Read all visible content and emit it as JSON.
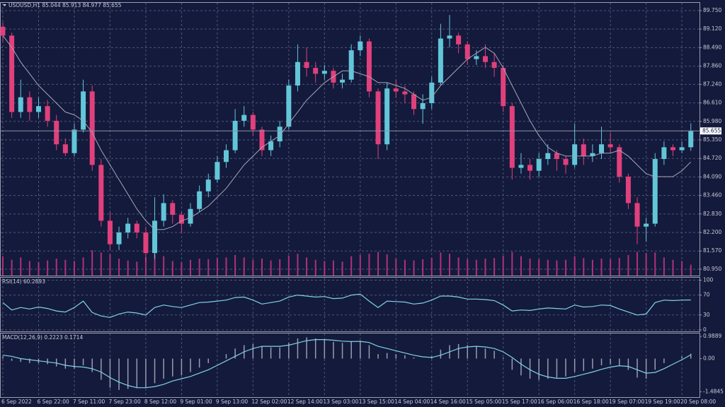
{
  "chart_data": [
    {
      "type": "candlestick",
      "title": "USOUSD,H1 85.044 85.913 84.977 85.655",
      "up_color": "#62c6d8",
      "down_color": "#e0407c",
      "grid": true,
      "categories": [
        "6 Sep 2022",
        null,
        null,
        null,
        "6 Sep 22:00",
        null,
        null,
        null,
        "7 Sep 11:00",
        null,
        null,
        null,
        "7 Sep 23:00",
        null,
        null,
        null,
        "8 Sep 12:00",
        null,
        null,
        null,
        "9 Sep 01:00",
        null,
        null,
        null,
        "9 Sep 13:00",
        null,
        null,
        null,
        "12 Sep 02:00",
        null,
        null,
        null,
        "12 Sep 14:00",
        null,
        null,
        null,
        "13 Sep 03:00",
        null,
        null,
        null,
        "13 Sep 15:00",
        null,
        null,
        null,
        "14 Sep 04:00",
        null,
        null,
        null,
        "14 Sep 16:00",
        null,
        null,
        null,
        "15 Sep 05:00",
        null,
        null,
        null,
        "15 Sep 17:00",
        null,
        null,
        null,
        "16 Sep 06:00",
        null,
        null,
        null,
        "16 Sep 18:00",
        null,
        null,
        null,
        "19 Sep 07:00",
        null,
        null,
        null,
        "19 Sep 19:00",
        null,
        null,
        null,
        "20 Sep 08:00",
        null
      ],
      "open": [
        89.2,
        88.9,
        86.3,
        86.8,
        86.3,
        86.5,
        86.0,
        85.2,
        84.9,
        85.7,
        87.0,
        84.5,
        82.6,
        81.8,
        82.2,
        82.5,
        82.2,
        81.5,
        82.6,
        83.2,
        82.8,
        82.5,
        83.0,
        83.6,
        84.0,
        84.6,
        85.0,
        86.0,
        86.2,
        85.7,
        85.0,
        85.3,
        85.8,
        87.2,
        88.0,
        87.8,
        87.6,
        87.7,
        87.3,
        87.4,
        88.4,
        88.7,
        87.0,
        85.2,
        87.1,
        87.0,
        86.9,
        86.4,
        86.6,
        87.3,
        88.8,
        88.9,
        88.6,
        88.1,
        88.2,
        88.0,
        87.8,
        86.5,
        84.4,
        84.5,
        84.3,
        84.7,
        84.9,
        84.7,
        84.5,
        85.2,
        84.8,
        84.9,
        85.2,
        85.1,
        84.1,
        83.2,
        82.4,
        82.5,
        84.7,
        85.1,
        85.0,
        85.1
      ],
      "high": [
        89.35,
        89.0,
        87.4,
        87.0,
        86.8,
        86.7,
        86.2,
        85.4,
        85.9,
        87.4,
        87.2,
        84.7,
        82.9,
        82.4,
        82.7,
        82.6,
        82.4,
        83.4,
        83.5,
        83.3,
        82.9,
        83.2,
        83.8,
        84.2,
        84.8,
        85.2,
        86.4,
        86.5,
        86.3,
        85.8,
        85.5,
        86.0,
        87.4,
        88.6,
        88.5,
        88.0,
        87.9,
        87.8,
        87.6,
        88.6,
        88.9,
        88.8,
        87.1,
        87.3,
        87.4,
        87.2,
        87.0,
        86.9,
        87.5,
        89.3,
        89.6,
        89.0,
        88.7,
        88.4,
        88.6,
        88.3,
        87.9,
        86.6,
        84.9,
        84.7,
        84.9,
        85.2,
        85.0,
        84.8,
        85.9,
        85.4,
        85.2,
        85.8,
        85.6,
        85.2,
        84.2,
        83.4,
        82.7,
        84.9,
        85.3,
        85.2,
        85.3,
        85.913
      ],
      "low": [
        88.7,
        86.1,
        86.1,
        86.0,
        86.1,
        85.8,
        85.0,
        84.8,
        84.8,
        85.6,
        84.3,
        82.4,
        81.6,
        81.6,
        82.0,
        82.0,
        81.2,
        81.3,
        82.4,
        82.5,
        82.2,
        82.4,
        82.9,
        83.4,
        83.9,
        84.4,
        84.9,
        85.8,
        85.5,
        84.8,
        84.8,
        85.1,
        85.7,
        87.0,
        87.5,
        87.3,
        87.4,
        87.1,
        87.1,
        87.3,
        88.2,
        86.8,
        84.7,
        85.0,
        86.8,
        86.6,
        86.2,
        85.9,
        86.4,
        87.2,
        88.5,
        88.3,
        87.9,
        87.9,
        87.8,
        87.5,
        86.3,
        84.0,
        84.2,
        84.0,
        84.1,
        84.5,
        84.3,
        84.2,
        84.4,
        84.5,
        84.6,
        84.7,
        84.9,
        83.9,
        83.0,
        81.8,
        81.9,
        82.4,
        84.5,
        84.8,
        84.9,
        84.977
      ],
      "close": [
        88.9,
        86.3,
        86.8,
        86.3,
        86.5,
        86.0,
        85.2,
        84.9,
        85.7,
        87.0,
        84.5,
        82.6,
        81.8,
        82.2,
        82.5,
        82.2,
        81.5,
        82.6,
        83.2,
        82.8,
        82.5,
        83.0,
        83.6,
        84.0,
        84.6,
        85.0,
        86.0,
        86.2,
        85.7,
        85.0,
        85.3,
        85.8,
        87.2,
        88.0,
        87.8,
        87.6,
        87.7,
        87.3,
        87.4,
        88.4,
        88.7,
        87.0,
        85.2,
        87.1,
        87.0,
        86.9,
        86.4,
        86.6,
        87.3,
        88.8,
        88.9,
        88.6,
        88.1,
        88.2,
        88.0,
        87.8,
        86.5,
        84.4,
        84.5,
        84.3,
        84.7,
        84.9,
        84.7,
        84.5,
        85.2,
        84.8,
        84.9,
        85.2,
        85.1,
        84.1,
        83.2,
        82.4,
        82.5,
        84.7,
        85.1,
        85.0,
        85.1,
        85.655
      ],
      "ma": {
        "color": "#a3a6b8",
        "values": [
          88.9,
          88.5,
          88.0,
          87.6,
          87.2,
          86.9,
          86.6,
          86.3,
          86.2,
          86.0,
          85.6,
          85.0,
          84.5,
          84.0,
          83.5,
          83.0,
          82.6,
          82.3,
          82.3,
          82.4,
          82.6,
          82.7,
          82.9,
          83.1,
          83.4,
          83.7,
          84.1,
          84.5,
          84.8,
          85.1,
          85.3,
          85.5,
          85.9,
          86.3,
          86.7,
          87.0,
          87.3,
          87.5,
          87.7,
          87.7,
          87.6,
          87.5,
          87.3,
          87.3,
          87.2,
          87.1,
          86.9,
          86.7,
          86.8,
          87.2,
          87.5,
          87.8,
          88.1,
          88.3,
          88.5,
          88.3,
          87.8,
          87.2,
          86.6,
          86.0,
          85.5,
          85.1,
          84.9,
          84.8,
          84.8,
          84.8,
          84.8,
          84.9,
          84.9,
          85.0,
          84.8,
          84.5,
          84.2,
          84.1,
          84.1,
          84.1,
          84.3,
          84.6
        ]
      },
      "volume": {
        "color": "#b0307a",
        "values": [
          3200,
          2600,
          3000,
          2400,
          2200,
          2500,
          2800,
          2600,
          2400,
          3000,
          4200,
          3800,
          3500,
          2800,
          2500,
          2300,
          3000,
          3600,
          3200,
          2400,
          2200,
          2600,
          2800,
          2700,
          2900,
          3000,
          3400,
          3000,
          2600,
          2800,
          2500,
          2700,
          3300,
          3600,
          3000,
          2600,
          2400,
          2500,
          2300,
          3200,
          3400,
          3600,
          3900,
          3500,
          2800,
          2600,
          2500,
          2700,
          2900,
          3800,
          3600,
          3000,
          2700,
          2600,
          2800,
          2900,
          3300,
          3900,
          3200,
          2800,
          2700,
          2600,
          2500,
          2600,
          3200,
          2900,
          2600,
          2800,
          2700,
          2900,
          3400,
          3900,
          3700,
          3800,
          3000,
          2600,
          2400,
          1800
        ]
      },
      "ylim": [
        80.734,
        90.014
      ],
      "yticks": [
        {
          "value": 89.75,
          "label": "89.750"
        },
        {
          "value": 89.12,
          "label": "89.120"
        },
        {
          "value": 88.49,
          "label": "88.490"
        },
        {
          "value": 87.86,
          "label": "87.860"
        },
        {
          "value": 87.24,
          "label": "87.240"
        },
        {
          "value": 86.61,
          "label": "86.610"
        },
        {
          "value": 85.98,
          "label": "85.980"
        },
        {
          "value": 85.35,
          "label": "85.350"
        },
        {
          "value": 84.72,
          "label": "84.720"
        },
        {
          "value": 84.09,
          "label": "84.090"
        },
        {
          "value": 83.46,
          "label": "83.460"
        },
        {
          "value": 82.83,
          "label": "82.830"
        },
        {
          "value": 82.2,
          "label": "82.200"
        },
        {
          "value": 81.57,
          "label": "81.570"
        },
        {
          "value": 80.95,
          "label": "80.950"
        }
      ]
    },
    {
      "type": "line",
      "title": "RSI(14) 60.2893",
      "grid": true,
      "series": [
        {
          "color": "#7fd3e6",
          "values": [
            55,
            40,
            45,
            42,
            46,
            43,
            38,
            36,
            45,
            58,
            35,
            28,
            25,
            32,
            36,
            34,
            30,
            45,
            50,
            47,
            45,
            50,
            55,
            56,
            58,
            60,
            65,
            66,
            60,
            52,
            55,
            58,
            66,
            70,
            68,
            66,
            67,
            63,
            64,
            70,
            72,
            58,
            45,
            58,
            57,
            56,
            52,
            54,
            60,
            68,
            68,
            66,
            62,
            62,
            61,
            59,
            50,
            38,
            40,
            39,
            42,
            44,
            43,
            42,
            50,
            46,
            47,
            50,
            49,
            42,
            36,
            30,
            32,
            55,
            60,
            59,
            60,
            60.2893
          ]
        }
      ],
      "ylim": [
        -3,
        105
      ],
      "yticks": [
        0,
        30,
        70,
        100
      ]
    },
    {
      "type": "combo",
      "title": "MACD(12,26,9) 0.2223 0.1714",
      "grid": false,
      "series": [
        {
          "type": "bar",
          "color": "#9a9cae",
          "values": [
            0.1,
            -0.1,
            -0.15,
            -0.2,
            -0.2,
            -0.25,
            -0.35,
            -0.45,
            -0.45,
            -0.3,
            -0.6,
            -0.95,
            -1.3,
            -1.4,
            -1.35,
            -1.3,
            -1.3,
            -1.1,
            -0.9,
            -0.8,
            -0.75,
            -0.6,
            -0.4,
            -0.2,
            0.0,
            0.2,
            0.45,
            0.6,
            0.65,
            0.55,
            0.5,
            0.5,
            0.7,
            0.9,
            0.95,
            0.9,
            0.85,
            0.75,
            0.7,
            0.75,
            0.8,
            0.6,
            0.2,
            0.25,
            0.2,
            0.15,
            0.05,
            0.0,
            0.1,
            0.4,
            0.6,
            0.65,
            0.6,
            0.55,
            0.45,
            0.35,
            0.05,
            -0.5,
            -0.75,
            -0.9,
            -0.95,
            -0.9,
            -0.85,
            -0.8,
            -0.6,
            -0.55,
            -0.45,
            -0.3,
            -0.25,
            -0.3,
            -0.5,
            -0.85,
            -0.9,
            -0.5,
            -0.2,
            0.0,
            0.1,
            0.2223
          ]
        },
        {
          "type": "line",
          "color": "#7fd3e6",
          "values": [
            0.15,
            0.1,
            0.0,
            -0.05,
            -0.1,
            -0.15,
            -0.2,
            -0.3,
            -0.35,
            -0.38,
            -0.45,
            -0.6,
            -0.85,
            -1.05,
            -1.2,
            -1.3,
            -1.3,
            -1.25,
            -1.15,
            -1.0,
            -0.9,
            -0.8,
            -0.65,
            -0.5,
            -0.3,
            -0.1,
            0.1,
            0.3,
            0.45,
            0.55,
            0.55,
            0.55,
            0.6,
            0.7,
            0.8,
            0.85,
            0.85,
            0.82,
            0.78,
            0.76,
            0.77,
            0.72,
            0.55,
            0.45,
            0.35,
            0.25,
            0.15,
            0.08,
            0.05,
            0.15,
            0.3,
            0.45,
            0.52,
            0.55,
            0.52,
            0.45,
            0.3,
            0.05,
            -0.25,
            -0.5,
            -0.7,
            -0.82,
            -0.88,
            -0.88,
            -0.8,
            -0.7,
            -0.6,
            -0.48,
            -0.38,
            -0.32,
            -0.35,
            -0.5,
            -0.65,
            -0.62,
            -0.45,
            -0.25,
            -0.05,
            0.1714
          ]
        }
      ],
      "ylim": [
        -1.72,
        1.12
      ],
      "yticks": [
        0.9889,
        {
          "value": 0,
          "label": "0.00"
        },
        -1.4845
      ]
    }
  ]
}
